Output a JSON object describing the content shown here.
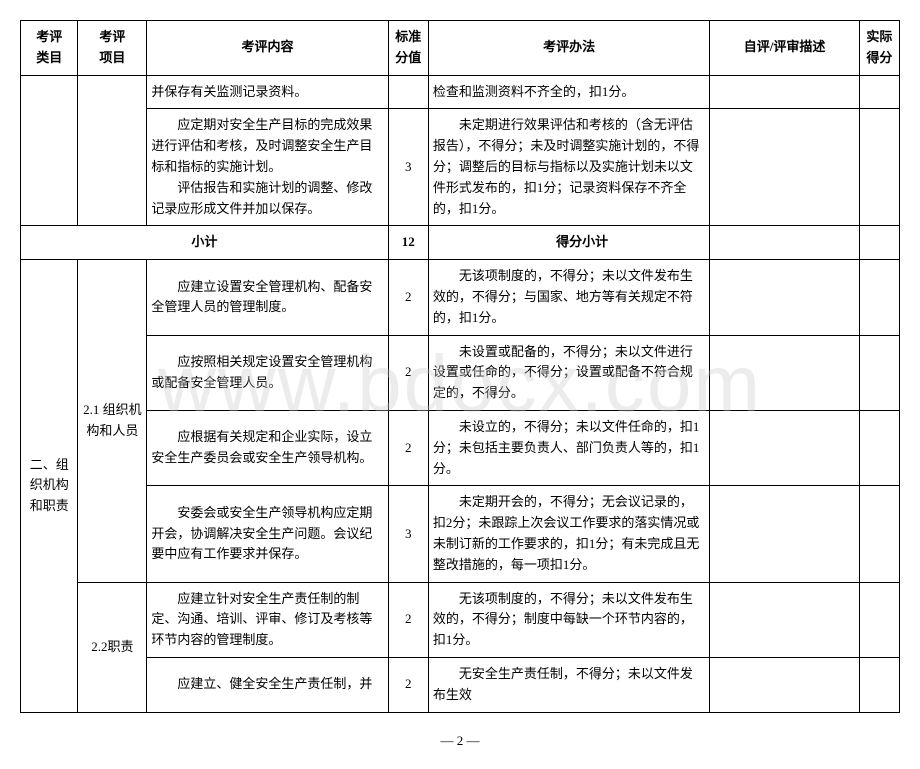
{
  "table": {
    "headers": {
      "category": "考评\n类目",
      "project": "考评\n项目",
      "content": "考评内容",
      "standard_score": "标准\n分值",
      "method": "考评办法",
      "description": "自评/评审描述",
      "actual_score": "实际\n得分"
    },
    "rows": [
      {
        "category": "",
        "project": "",
        "content": "并保存有关监测记录资料。",
        "score": "",
        "method": "检查和监测资料不齐全的，扣1分。",
        "desc": "",
        "actual": ""
      },
      {
        "category": "",
        "project": "",
        "content": "应定期对安全生产目标的完成效果进行评估和考核，及时调整安全生产目标和指标的实施计划。\n　　评估报告和实施计划的调整、修改记录应形成文件并加以保存。",
        "score": "3",
        "method": "未定期进行效果评估和考核的（含无评估报告），不得分；未及时调整实施计划的，不得分；调整后的目标与指标以及实施计划未以文件形式发布的，扣1分；记录资料保存不齐全的，扣1分。",
        "desc": "",
        "actual": ""
      }
    ],
    "subtotal": {
      "label": "小计",
      "score": "12",
      "method_label": "得分小计"
    },
    "section2": {
      "category": "二、组织机构和职责",
      "project1": "2.1 组织机构和人员",
      "project2": "2.2职责",
      "rows": [
        {
          "content": "应建立设置安全管理机构、配备安全管理人员的管理制度。",
          "score": "2",
          "method": "无该项制度的，不得分；未以文件发布生效的，不得分；与国家、地方等有关规定不符的，扣1分。"
        },
        {
          "content": "应按照相关规定设置安全管理机构或配备安全管理人员。",
          "score": "2",
          "method": "未设置或配备的，不得分；未以文件进行设置或任命的，不得分；设置或配备不符合规定的，不得分。"
        },
        {
          "content": "应根据有关规定和企业实际，设立安全生产委员会或安全生产领导机构。",
          "score": "2",
          "method": "未设立的，不得分；未以文件任命的，扣1分；未包括主要负责人、部门负责人等的，扣1分。"
        },
        {
          "content": "安委会或安全生产领导机构应定期开会，协调解决安全生产问题。会议纪要中应有工作要求并保存。",
          "score": "3",
          "method": "未定期开会的，不得分；无会议记录的，扣2分；未跟踪上次会议工作要求的落实情况或未制订新的工作要求的，扣1分；有未完成且无整改措施的，每一项扣1分。"
        },
        {
          "content": "应建立针对安全生产责任制的制定、沟通、培训、评审、修订及考核等环节内容的管理制度。",
          "score": "2",
          "method": "无该项制度的，不得分；未以文件发布生效的，不得分；制度中每缺一个环节内容的，扣1分。"
        },
        {
          "content": "应建立、健全安全生产责任制，并",
          "score": "2",
          "method": "无安全生产责任制，不得分；未以文件发布生效"
        }
      ]
    }
  },
  "watermark": "www.bdocx.com",
  "page_number": "— 2 —",
  "colors": {
    "border": "#000000",
    "text": "#000000",
    "background": "#ffffff",
    "watermark": "rgba(200,200,200,0.35)"
  },
  "fonts": {
    "body_size": 13,
    "watermark_size": 80
  }
}
